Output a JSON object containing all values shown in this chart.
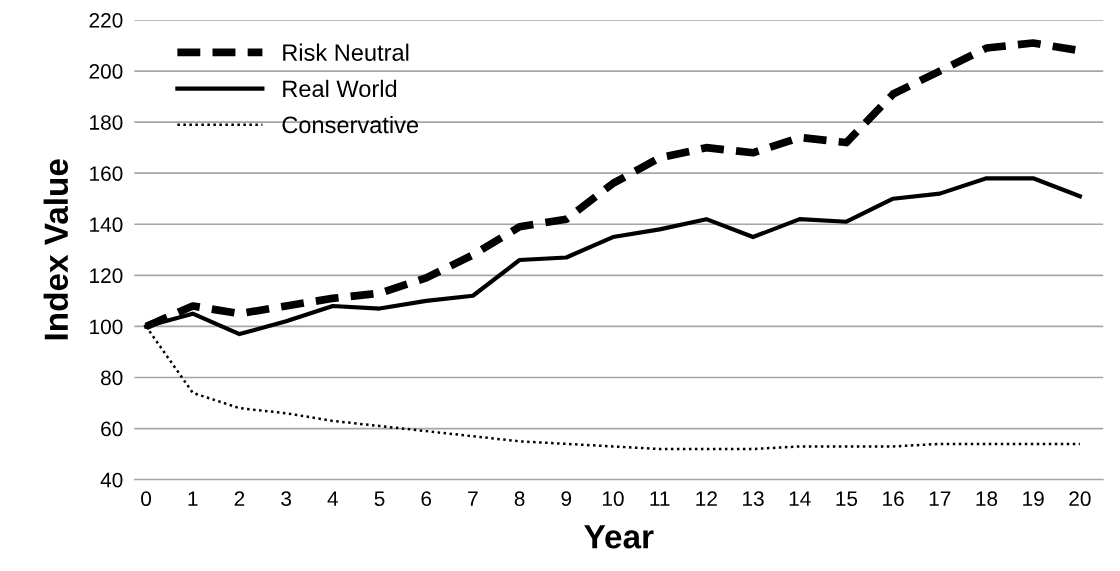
{
  "chart_data": {
    "type": "line",
    "xlabel": "Year",
    "ylabel": "Index Value",
    "categories": [
      "0",
      "1",
      "2",
      "3",
      "4",
      "5",
      "6",
      "7",
      "8",
      "9",
      "10",
      "11",
      "12",
      "13",
      "14",
      "15",
      "16",
      "17",
      "18",
      "19",
      "20"
    ],
    "series": [
      {
        "name": "Risk Neutral",
        "color": "#000000",
        "line_style": "dashed",
        "values": [
          100,
          108,
          105,
          108,
          111,
          113,
          119,
          128,
          139,
          142,
          156,
          166,
          170,
          168,
          174,
          172,
          191,
          200,
          209,
          211,
          208
        ]
      },
      {
        "name": "Real World",
        "color": "#000000",
        "line_style": "solid",
        "values": [
          100,
          105,
          97,
          102,
          108,
          107,
          110,
          112,
          126,
          127,
          135,
          138,
          142,
          135,
          142,
          141,
          150,
          152,
          158,
          158,
          151
        ]
      },
      {
        "name": "Conservative",
        "color": "#000000",
        "line_style": "dotted",
        "values": [
          100,
          74,
          68,
          66,
          63,
          61,
          59,
          57,
          55,
          54,
          53,
          52,
          52,
          52,
          53,
          53,
          53,
          54,
          54,
          54,
          54
        ]
      }
    ],
    "ylim": [
      40,
      220
    ],
    "yticks": [
      40,
      60,
      80,
      100,
      120,
      140,
      160,
      180,
      200,
      220
    ],
    "grid": "y",
    "legend": "top left",
    "marker": "none"
  }
}
